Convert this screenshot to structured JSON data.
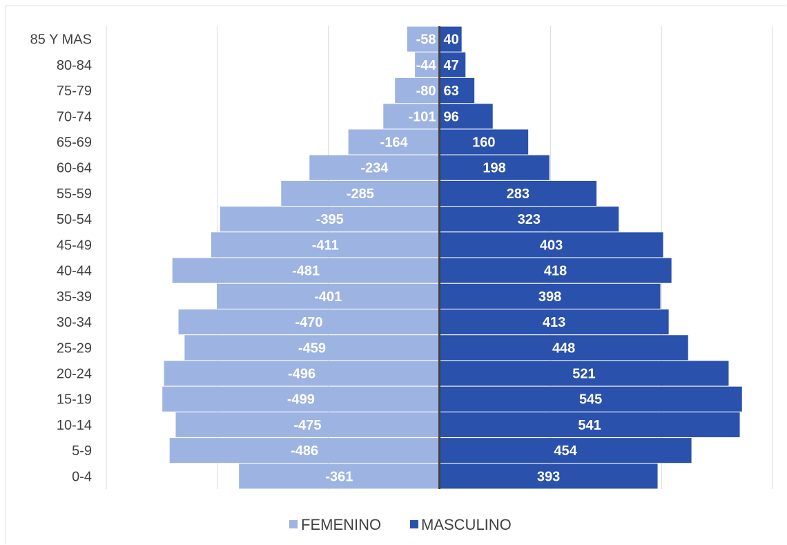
{
  "chart_data": {
    "type": "bar",
    "orientation": "horizontal",
    "stacked": true,
    "categories": [
      "85 Y MAS",
      "80-84",
      "75-79",
      "70-74",
      "65-69",
      "60-64",
      "55-59",
      "50-54",
      "45-49",
      "40-44",
      "35-39",
      "30-34",
      "25-29",
      "20-24",
      "15-19",
      "10-14",
      "5-9",
      "0-4"
    ],
    "series": [
      {
        "name": "FEMENINO",
        "color": "#9db3e2",
        "values": [
          -58,
          -44,
          -80,
          -101,
          -164,
          -234,
          -285,
          -395,
          -411,
          -481,
          -401,
          -470,
          -459,
          -496,
          -499,
          -475,
          -486,
          -361
        ]
      },
      {
        "name": "MASCULINO",
        "color": "#2a51ab",
        "values": [
          40,
          47,
          63,
          96,
          160,
          198,
          283,
          323,
          403,
          418,
          398,
          413,
          448,
          521,
          545,
          541,
          454,
          393
        ]
      }
    ],
    "xlim": [
      -600,
      600
    ],
    "grid": true,
    "legend_position": "bottom"
  }
}
